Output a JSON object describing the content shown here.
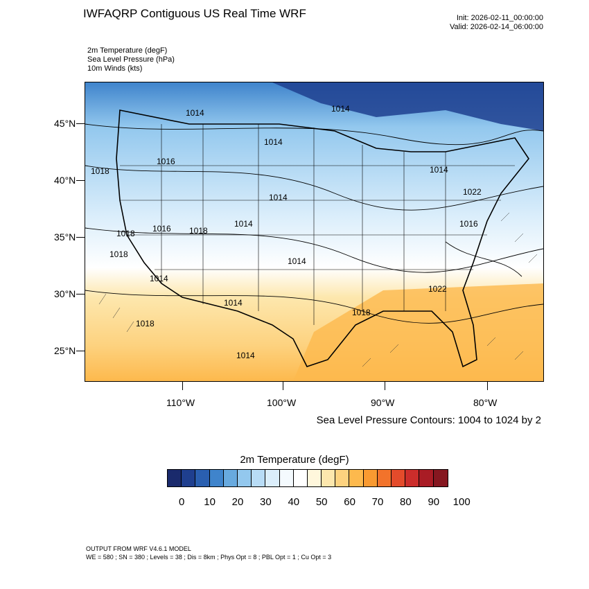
{
  "header": {
    "title": "IWFAQRP Contiguous US Real Time WRF",
    "init": "Init: 2026-02-11_00:00:00",
    "valid": "Valid: 2026-02-14_06:00:00"
  },
  "fields": [
    "2m Temperature   (degF)",
    "Sea Level Pressure   (hPa)",
    "10m Winds   (kts)"
  ],
  "map": {
    "lat_labels": [
      "45°N",
      "40°N",
      "35°N",
      "30°N",
      "25°N"
    ],
    "lon_labels": [
      "110°W",
      "100°W",
      "90°W",
      "80°W"
    ],
    "isobar_labels": [
      "1014",
      "1014",
      "1014",
      "1018",
      "1016",
      "1014",
      "1018",
      "1016",
      "1018",
      "1014",
      "1018",
      "1014",
      "1014",
      "1014",
      "1018",
      "1014",
      "1018",
      "1014",
      "1022",
      "1022",
      "1016"
    ]
  },
  "slp_note": "Sea Level Pressure Contours: 1004 to 1024 by 2",
  "colorbar": {
    "title": "2m Temperature  (degF)",
    "labels": [
      "0",
      "10",
      "20",
      "30",
      "40",
      "50",
      "60",
      "70",
      "80",
      "90",
      "100"
    ],
    "colors": [
      "#1a2a6c",
      "#1f3f8f",
      "#2a5fb0",
      "#3f84cc",
      "#68aadf",
      "#93c8ee",
      "#b8dcf6",
      "#dbeefb",
      "#f4fafe",
      "#ffffff",
      "#fff7dc",
      "#fde7ad",
      "#fdd27f",
      "#fdb94d",
      "#f99a31",
      "#f2732b",
      "#e44b2b",
      "#cc2d2b",
      "#a91c25",
      "#861720"
    ]
  },
  "footer": {
    "line1": "OUTPUT FROM WRF V4.6.1 MODEL",
    "line2": "WE = 580 ; SN = 380 ; Levels = 38 ; Dis = 8km ; Phys Opt = 8 ; PBL Opt = 1 ; Cu Opt = 3"
  }
}
